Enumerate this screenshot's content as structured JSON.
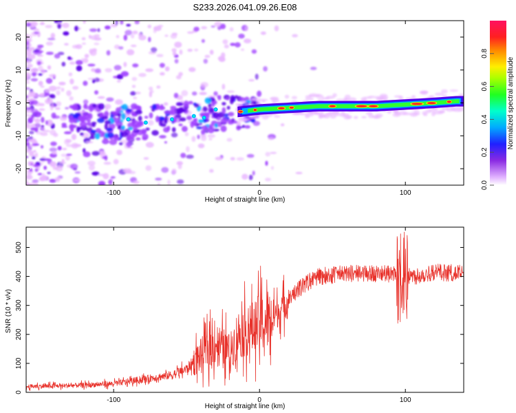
{
  "title": "S233.2026.041.09.26.E08",
  "colors": {
    "trace": "#e8312a",
    "colormap": [
      "#e9b8ff",
      "#a040ff",
      "#5a00e6",
      "#2020ff",
      "#00b0ff",
      "#00ffd0",
      "#30ff30",
      "#c8ff00",
      "#ffe000",
      "#ff9000",
      "#ff2020",
      "#ff1060"
    ]
  },
  "chart_data": [
    {
      "type": "heatmap",
      "title": "S233.2026.041.09.26.E08",
      "xlabel": "Height of straight line (km)",
      "ylabel": "Frequency (Hz)",
      "xlim": [
        -160,
        140
      ],
      "ylim": [
        -25,
        25
      ],
      "xticks": [
        -100,
        0,
        100
      ],
      "xtick_labels": [
        "-100",
        "0",
        "100"
      ],
      "yticks": [
        20,
        10,
        0,
        -10,
        -20
      ],
      "ytick_labels": [
        "20",
        "10",
        "0",
        "-10",
        "-20"
      ],
      "ridge": {
        "description": "dominant frequency ridge",
        "x": [
          -120,
          -100,
          -80,
          -60,
          -40,
          -20,
          0,
          20,
          40,
          60,
          80,
          100,
          120,
          135
        ],
        "y": [
          -5.5,
          -6,
          -6,
          -5,
          -4,
          -3,
          -2,
          -1.5,
          -1,
          -1,
          -1,
          -0.5,
          0,
          0.5
        ]
      },
      "colorbar": {
        "label": "Normalized spectral amplitude",
        "range": [
          0,
          1
        ],
        "ticks": [
          0.0,
          0.2,
          0.4,
          0.6,
          0.8
        ],
        "tick_labels": [
          "0.0",
          "0.2",
          "0.4",
          "0.6",
          "0.8"
        ]
      }
    },
    {
      "type": "line",
      "xlabel": "Height of straight line (km)",
      "ylabel": "SNR (10 * v/v)",
      "xlim": [
        -160,
        140
      ],
      "ylim": [
        0,
        570
      ],
      "xticks": [
        -100,
        0,
        100
      ],
      "xtick_labels": [
        "-100",
        "0",
        "100"
      ],
      "yticks": [
        0,
        100,
        200,
        300,
        400,
        500
      ],
      "ytick_labels": [
        "0",
        "100",
        "200",
        "300",
        "400",
        "500"
      ],
      "series": [
        {
          "name": "SNR",
          "x": [
            -160,
            -140,
            -120,
            -100,
            -80,
            -60,
            -50,
            -40,
            -30,
            -20,
            -15,
            -10,
            -5,
            0,
            5,
            10,
            20,
            30,
            40,
            60,
            80,
            95,
            100,
            105,
            120,
            140
          ],
          "values": [
            20,
            22,
            25,
            30,
            45,
            60,
            80,
            130,
            170,
            140,
            200,
            210,
            220,
            240,
            240,
            260,
            320,
            370,
            400,
            410,
            410,
            405,
            410,
            400,
            415,
            410
          ]
        }
      ]
    }
  ]
}
